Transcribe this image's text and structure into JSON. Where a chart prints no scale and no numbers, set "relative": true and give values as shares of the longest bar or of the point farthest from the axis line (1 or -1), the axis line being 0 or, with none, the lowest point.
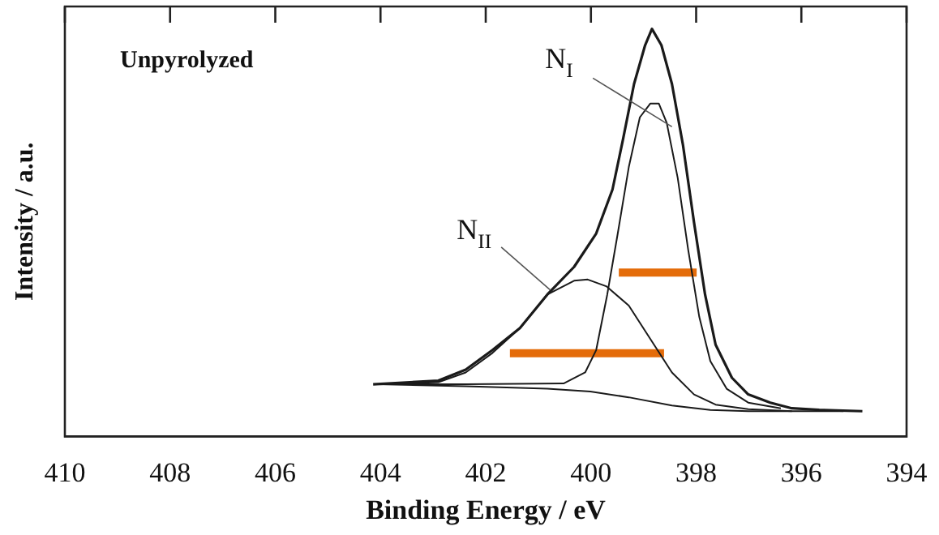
{
  "chart_data": {
    "type": "line",
    "relative": true,
    "xlabel": "Binding Energy / eV",
    "ylabel": "Intensity / a.u.",
    "xlim": [
      410,
      394
    ],
    "xticks": [
      410,
      408,
      406,
      404,
      402,
      400,
      398,
      396,
      394
    ],
    "grid": false,
    "legend": false,
    "marker": "none",
    "line_style": "solid",
    "annotations": [
      "Unpyrolyzed",
      {
        "text": "N$_{I}$",
        "x": 398.46,
        "y": 0.76
      },
      {
        "text": "N$_{II}$",
        "x": 400.78,
        "y": 0.36
      }
    ],
    "series": [
      {
        "color": "#1a1a1a",
        "x": [
          404.14,
          402.9,
          402.38,
          401.87,
          401.35,
          400.83,
          400.32,
          399.9,
          399.59,
          399.39,
          399.18,
          398.97,
          398.84,
          398.66,
          398.46,
          398.25,
          398.04,
          397.83,
          397.63,
          397.32,
          397.01,
          396.59,
          396.18,
          395.66,
          394.84
        ],
        "values": [
          0.128,
          0.137,
          0.164,
          0.212,
          0.266,
          0.348,
          0.416,
          0.498,
          0.606,
          0.729,
          0.865,
          0.96,
          1,
          0.96,
          0.865,
          0.715,
          0.525,
          0.348,
          0.225,
          0.144,
          0.103,
          0.083,
          0.069,
          0.065,
          0.062
        ]
      },
      {
        "color": "#1a1a1a",
        "x": [
          403.9,
          402.38,
          400.52,
          400.11,
          399.9,
          399.69,
          399.49,
          399.28,
          399.07,
          398.87,
          398.71,
          398.56,
          398.35,
          398.15,
          397.94,
          397.73,
          397.42,
          397.01,
          396.39
        ],
        "values": [
          0.128,
          0.128,
          0.13,
          0.157,
          0.212,
          0.348,
          0.498,
          0.661,
          0.783,
          0.817,
          0.817,
          0.77,
          0.634,
          0.457,
          0.293,
          0.185,
          0.117,
          0.083,
          0.069
        ]
      },
      {
        "color": "#1a1a1a",
        "x": [
          404.0,
          402.9,
          402.38,
          401.87,
          401.35,
          400.83,
          400.32,
          400.06,
          399.7,
          399.28,
          398.87,
          398.46,
          398.04,
          397.63,
          397.01,
          396.18
        ],
        "values": [
          0.128,
          0.133,
          0.157,
          0.205,
          0.266,
          0.348,
          0.382,
          0.385,
          0.368,
          0.321,
          0.239,
          0.157,
          0.103,
          0.078,
          0.067,
          0.062
        ]
      },
      {
        "color": "#1a1a1a",
        "x": [
          404.05,
          402.38,
          400.83,
          400.01,
          399.28,
          398.46,
          397.73,
          397.01,
          395.2
        ],
        "values": [
          0.128,
          0.123,
          0.117,
          0.11,
          0.096,
          0.076,
          0.065,
          0.062,
          0.062
        ]
      },
      {
        "color": "#e46c0a",
        "x": [
          399.47,
          397.99
        ],
        "values": [
          0.402,
          0.402
        ]
      },
      {
        "color": "#e46c0a",
        "x": [
          401.54,
          398.61
        ],
        "values": [
          0.204,
          0.204
        ]
      }
    ]
  }
}
